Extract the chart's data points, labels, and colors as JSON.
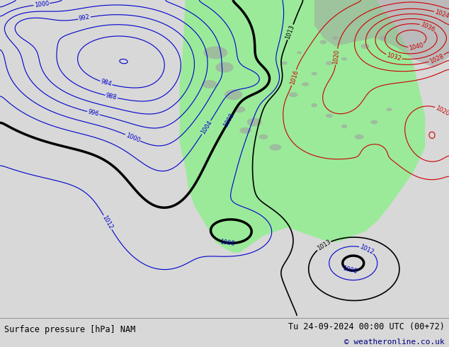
{
  "title_left": "Surface pressure [hPa] NAM",
  "title_right": "Tu 24-09-2024 00:00 UTC (00+72)",
  "copyright": "© weatheronline.co.uk",
  "bg_color": "#d8d8d8",
  "footer_font_size": 8.5,
  "fig_width": 6.34,
  "fig_height": 4.9,
  "dpi": 100,
  "green_color": "#90ee90",
  "gray_land_color": "#b0b0b0",
  "ocean_color": "#d4d4d4"
}
